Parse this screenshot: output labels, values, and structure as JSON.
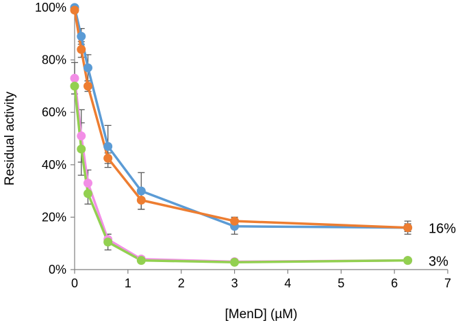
{
  "chart_data": {
    "type": "line",
    "title": "",
    "xlabel": "[MenD] (µM)",
    "ylabel": "Residual activity",
    "xlim": [
      0,
      7
    ],
    "ylim": [
      0,
      100
    ],
    "x_ticks": [
      0,
      1,
      2,
      3,
      4,
      5,
      6,
      7
    ],
    "x_tick_labels": [
      "0",
      "1",
      "2",
      "3",
      "4",
      "5",
      "6",
      "7"
    ],
    "y_ticks": [
      0,
      20,
      40,
      60,
      80,
      100
    ],
    "y_tick_labels": [
      "0%",
      "20%",
      "40%",
      "60%",
      "80%",
      "100%"
    ],
    "grid": false,
    "series": [
      {
        "name": "blue",
        "color": "#5b9bd5",
        "x": [
          0,
          0.125,
          0.25,
          0.625,
          1.25,
          3,
          6.25
        ],
        "y": [
          100,
          89,
          77,
          47,
          30,
          16.5,
          16
        ],
        "err": [
          0,
          3,
          5,
          8,
          7,
          3,
          2.5
        ]
      },
      {
        "name": "orange",
        "color": "#ed7d31",
        "x": [
          0,
          0.125,
          0.25,
          0.625,
          1.25,
          3,
          6.25
        ],
        "y": [
          99,
          84,
          70,
          42.5,
          26.5,
          18.5,
          16
        ],
        "err": [
          1,
          3,
          2,
          2,
          3.5,
          1.5,
          1.5
        ]
      },
      {
        "name": "pink",
        "color": "#f28ee6",
        "x": [
          0,
          0.125,
          0.25,
          0.625,
          1.25,
          3,
          6.25
        ],
        "y": [
          73,
          51,
          33,
          11.5,
          4,
          3,
          3.5
        ],
        "err": [
          6,
          10,
          5,
          2,
          1,
          0.5,
          0.5
        ]
      },
      {
        "name": "green",
        "color": "#92d050",
        "x": [
          0,
          0.125,
          0.25,
          0.625,
          1.25,
          3,
          6.25
        ],
        "y": [
          70,
          46,
          29,
          10.5,
          3.5,
          2.8,
          3.5
        ],
        "err": [
          3,
          10,
          4,
          3,
          0.5,
          0.5,
          0.5
        ]
      }
    ],
    "annotations": [
      {
        "text": "16%",
        "near_series": "orange"
      },
      {
        "text": "3%",
        "near_series": "green"
      }
    ]
  }
}
